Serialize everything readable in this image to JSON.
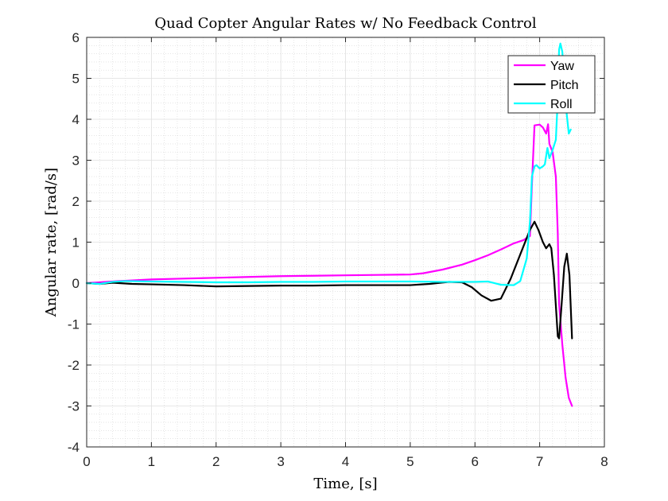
{
  "chart_data": {
    "type": "line",
    "title": "Quad Copter Angular Rates w/ No Feedback Control",
    "xlabel": "Time, [s]",
    "ylabel": "Angular rate, [rad/s]",
    "xlim": [
      0,
      8
    ],
    "ylim": [
      -4,
      6
    ],
    "xticks": [
      "0",
      "1",
      "2",
      "3",
      "4",
      "5",
      "6",
      "7",
      "8"
    ],
    "yticks": [
      "6",
      "5",
      "4",
      "3",
      "2",
      "1",
      "0",
      "-1",
      "-2",
      "-3",
      "-4"
    ],
    "grid": true,
    "minor_grid": true,
    "legend_position": "top-right",
    "series": [
      {
        "name": "Yaw",
        "color": "#ff00ff",
        "x": [
          0,
          0.5,
          1,
          1.5,
          2,
          2.5,
          3,
          3.5,
          4,
          4.5,
          5,
          5.2,
          5.5,
          5.8,
          6.0,
          6.2,
          6.4,
          6.6,
          6.75,
          6.85,
          6.88,
          6.92,
          7.0,
          7.05,
          7.1,
          7.13,
          7.15,
          7.2,
          7.25,
          7.28,
          7.3,
          7.35,
          7.4,
          7.45,
          7.5
        ],
        "y": [
          0,
          0.05,
          0.09,
          0.11,
          0.13,
          0.15,
          0.17,
          0.18,
          0.19,
          0.2,
          0.21,
          0.24,
          0.33,
          0.45,
          0.56,
          0.68,
          0.82,
          0.97,
          1.05,
          1.15,
          2.4,
          3.85,
          3.87,
          3.8,
          3.65,
          3.88,
          3.4,
          3.2,
          2.6,
          1.2,
          -0.5,
          -1.5,
          -2.3,
          -2.8,
          -3.0
        ]
      },
      {
        "name": "Pitch",
        "color": "#000000",
        "x": [
          0,
          0.2,
          0.4,
          0.7,
          1,
          1.5,
          2,
          2.5,
          3,
          3.5,
          4,
          4.5,
          5,
          5.3,
          5.6,
          5.8,
          5.95,
          6.1,
          6.25,
          6.4,
          6.55,
          6.7,
          6.85,
          6.92,
          6.98,
          7.05,
          7.1,
          7.15,
          7.18,
          7.22,
          7.26,
          7.28,
          7.3,
          7.34,
          7.38,
          7.42,
          7.46,
          7.5
        ],
        "y": [
          0,
          -0.02,
          0.01,
          -0.02,
          -0.03,
          -0.05,
          -0.08,
          -0.07,
          -0.06,
          -0.06,
          -0.05,
          -0.05,
          -0.05,
          -0.02,
          0.03,
          0.02,
          -0.1,
          -0.3,
          -0.43,
          -0.38,
          0.1,
          0.7,
          1.3,
          1.5,
          1.3,
          1.0,
          0.85,
          0.95,
          0.85,
          0.2,
          -0.8,
          -1.3,
          -1.35,
          -0.5,
          0.4,
          0.72,
          0.2,
          -1.35
        ]
      },
      {
        "name": "Roll",
        "color": "#00ffff",
        "x": [
          0,
          0.2,
          0.4,
          0.6,
          1,
          1.5,
          2,
          2.5,
          3,
          3.5,
          4,
          4.5,
          5,
          5.5,
          6,
          6.2,
          6.4,
          6.6,
          6.7,
          6.8,
          6.85,
          6.88,
          6.92,
          6.95,
          7.0,
          7.05,
          7.08,
          7.12,
          7.15,
          7.2,
          7.25,
          7.28,
          7.3,
          7.32,
          7.35,
          7.38,
          7.42,
          7.45,
          7.48
        ],
        "y": [
          0,
          -0.02,
          0.03,
          0.05,
          0.04,
          0.03,
          0.02,
          0.02,
          0.03,
          0.03,
          0.04,
          0.04,
          0.04,
          0.03,
          0.03,
          0.04,
          -0.04,
          -0.05,
          0.05,
          0.6,
          1.5,
          2.6,
          2.85,
          2.88,
          2.8,
          2.85,
          2.9,
          3.3,
          3.05,
          3.25,
          3.5,
          4.5,
          5.7,
          5.85,
          5.65,
          4.9,
          4.1,
          3.65,
          3.75
        ]
      }
    ]
  }
}
